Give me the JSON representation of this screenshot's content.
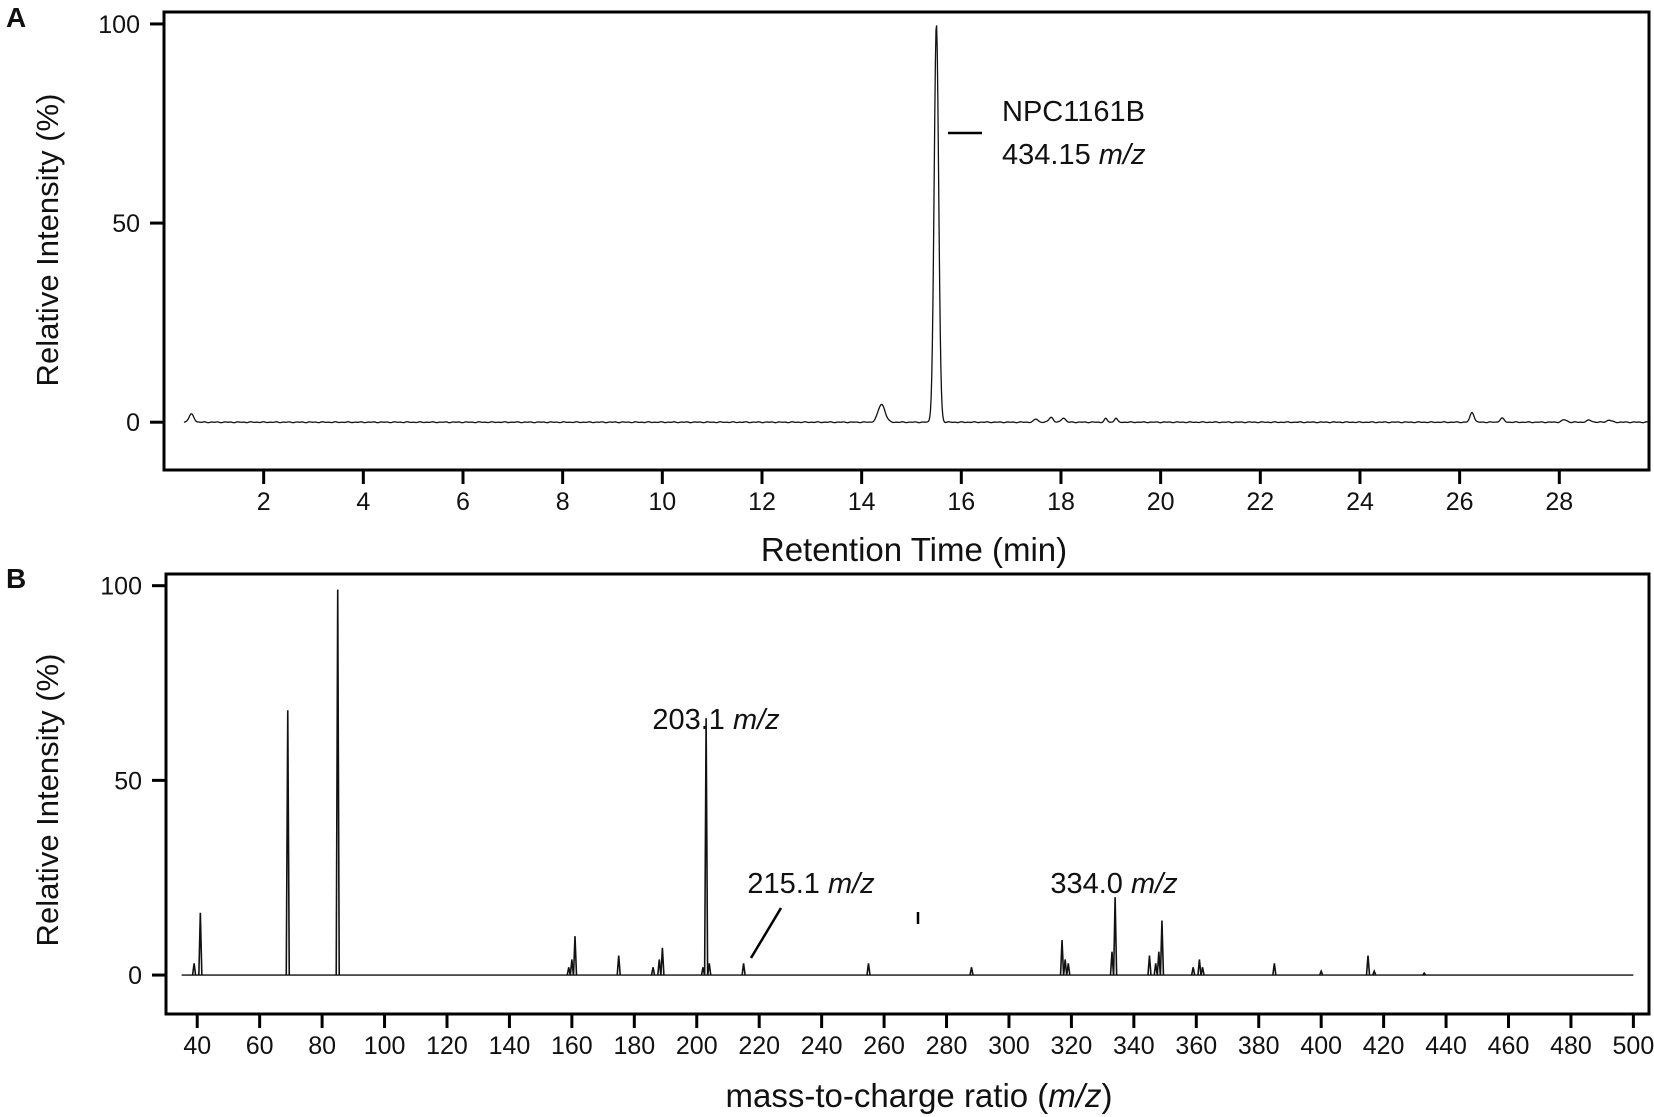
{
  "chart_data": [
    {
      "panel_label": "A",
      "type": "line",
      "xlabel": "Retention Time (min)",
      "ylabel": "Relative Intensity (%)",
      "xlim": [
        0,
        29.8
      ],
      "ylim": [
        -12,
        103
      ],
      "xticks": [
        2,
        4,
        6,
        8,
        10,
        12,
        14,
        16,
        18,
        20,
        22,
        24,
        26,
        28
      ],
      "yticks": [
        0,
        50,
        100
      ],
      "baseline": 0,
      "peaks": [
        {
          "x": 0.55,
          "y": 2.0,
          "w": 0.05
        },
        {
          "x": 14.4,
          "y": 4.5,
          "w": 0.07
        },
        {
          "x": 15.5,
          "y": 100,
          "w": 0.045
        },
        {
          "x": 17.5,
          "y": 0.8,
          "w": 0.04
        },
        {
          "x": 17.8,
          "y": 1.3,
          "w": 0.04
        },
        {
          "x": 18.05,
          "y": 1.1,
          "w": 0.04
        },
        {
          "x": 18.9,
          "y": 0.9,
          "w": 0.03
        },
        {
          "x": 19.1,
          "y": 1.0,
          "w": 0.03
        },
        {
          "x": 26.25,
          "y": 2.5,
          "w": 0.04
        },
        {
          "x": 26.85,
          "y": 1.0,
          "w": 0.04
        },
        {
          "x": 28.1,
          "y": 0.6,
          "w": 0.05
        },
        {
          "x": 28.6,
          "y": 0.5,
          "w": 0.05
        },
        {
          "x": 29.0,
          "y": 0.5,
          "w": 0.05
        }
      ],
      "annotation": {
        "name": "NPC1161B",
        "mz_value": "434.15",
        "mz_unit": "m/z",
        "peak_x": 15.5
      }
    },
    {
      "panel_label": "B",
      "type": "bar",
      "xlabel_prefix": "mass-to-charge ratio (",
      "xlabel_unit": "m/z",
      "xlabel_suffix": ")",
      "ylabel": "Relative Intensity (%)",
      "xlim": [
        30,
        505
      ],
      "ylim": [
        -10,
        103
      ],
      "xticks": [
        40,
        60,
        80,
        100,
        120,
        140,
        160,
        180,
        200,
        220,
        240,
        260,
        280,
        300,
        320,
        340,
        360,
        380,
        400,
        420,
        440,
        460,
        480,
        500
      ],
      "yticks": [
        0,
        50,
        100
      ],
      "x_range": [
        35,
        500
      ],
      "baseline": 0,
      "peaks": [
        {
          "x": 39,
          "y": 3
        },
        {
          "x": 41,
          "y": 16
        },
        {
          "x": 69,
          "y": 68
        },
        {
          "x": 85,
          "y": 99
        },
        {
          "x": 159,
          "y": 2
        },
        {
          "x": 160,
          "y": 4
        },
        {
          "x": 161,
          "y": 10
        },
        {
          "x": 175,
          "y": 5
        },
        {
          "x": 186,
          "y": 2
        },
        {
          "x": 188,
          "y": 4
        },
        {
          "x": 189,
          "y": 7
        },
        {
          "x": 202,
          "y": 2
        },
        {
          "x": 203,
          "y": 66
        },
        {
          "x": 204,
          "y": 3
        },
        {
          "x": 215,
          "y": 3
        },
        {
          "x": 255,
          "y": 3
        },
        {
          "x": 288,
          "y": 2
        },
        {
          "x": 317,
          "y": 9
        },
        {
          "x": 318,
          "y": 4
        },
        {
          "x": 319,
          "y": 3
        },
        {
          "x": 333,
          "y": 6
        },
        {
          "x": 334,
          "y": 20
        },
        {
          "x": 345,
          "y": 5
        },
        {
          "x": 347,
          "y": 3
        },
        {
          "x": 348,
          "y": 6
        },
        {
          "x": 349,
          "y": 14
        },
        {
          "x": 359,
          "y": 2
        },
        {
          "x": 361,
          "y": 4
        },
        {
          "x": 362,
          "y": 2
        },
        {
          "x": 385,
          "y": 3
        },
        {
          "x": 400,
          "y": 1
        },
        {
          "x": 415,
          "y": 5
        },
        {
          "x": 417,
          "y": 1
        },
        {
          "x": 433,
          "y": 0.5
        }
      ],
      "labels": [
        {
          "value": "203.1",
          "unit": "m/z",
          "mz": 203.1
        },
        {
          "value": "215.1",
          "unit": "m/z",
          "mz": 215.1
        },
        {
          "value": "334.0",
          "unit": "m/z",
          "mz": 334.0
        }
      ]
    }
  ]
}
